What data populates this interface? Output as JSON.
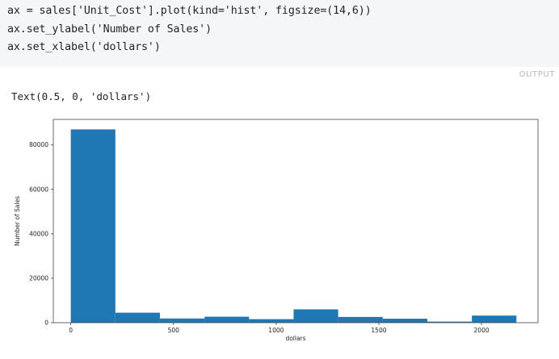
{
  "code_cell": {
    "lines": [
      "ax = sales['Unit_Cost'].plot(kind='hist', figsize=(14,6))",
      "ax.set_ylabel('Number of Sales')",
      "ax.set_xlabel('dollars')"
    ]
  },
  "output": {
    "tag": "OUTPUT",
    "text": "Text(0.5, 0, 'dollars')"
  },
  "colors": {
    "bar": "#1f77b4",
    "code_bg": "#f5f6f8"
  },
  "chart_data": {
    "type": "bar",
    "kind": "histogram",
    "xlabel": "dollars",
    "ylabel": "Number of Sales",
    "xlim": [
      -85,
      2275
    ],
    "ylim": [
      0,
      91500
    ],
    "x_ticks": [
      0,
      500,
      1000,
      1500,
      2000
    ],
    "y_ticks": [
      0,
      20000,
      40000,
      60000,
      80000
    ],
    "bins": [
      {
        "x0": 0,
        "x1": 217,
        "value": 87000
      },
      {
        "x0": 217,
        "x1": 434,
        "value": 4500
      },
      {
        "x0": 434,
        "x1": 651,
        "value": 1900
      },
      {
        "x0": 651,
        "x1": 868,
        "value": 2700
      },
      {
        "x0": 868,
        "x1": 1085,
        "value": 1600
      },
      {
        "x0": 1085,
        "x1": 1302,
        "value": 6000
      },
      {
        "x0": 1302,
        "x1": 1519,
        "value": 2600
      },
      {
        "x0": 1519,
        "x1": 1736,
        "value": 1800
      },
      {
        "x0": 1736,
        "x1": 1953,
        "value": 500
      },
      {
        "x0": 1953,
        "x1": 2170,
        "value": 3200
      }
    ]
  }
}
